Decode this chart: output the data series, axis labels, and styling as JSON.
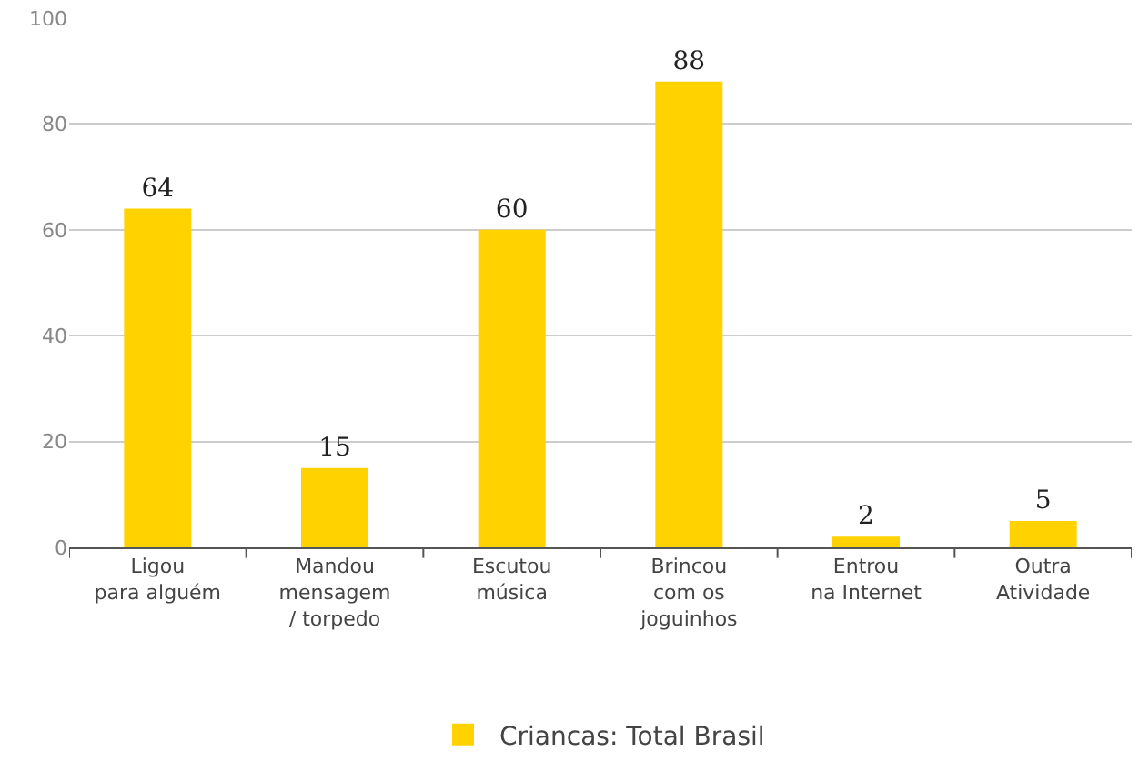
{
  "chart_data": {
    "type": "bar",
    "categories": [
      "Ligou\npara alguém",
      "Mandou\nmensagem\n/ torpedo",
      "Escutou\nmúsica",
      "Brincou\ncom os\njoguinhos",
      "Entrou\nna Internet",
      "Outra\nAtividade"
    ],
    "series": [
      {
        "name": "Criancas: Total Brasil",
        "color": "#ffd200",
        "values": [
          64,
          15,
          60,
          88,
          2,
          5
        ]
      }
    ],
    "ylim": [
      0,
      100
    ],
    "yticks": [
      0,
      20,
      40,
      60,
      80,
      100
    ],
    "grid": "y",
    "legend": "bottom",
    "data_labels": true
  }
}
